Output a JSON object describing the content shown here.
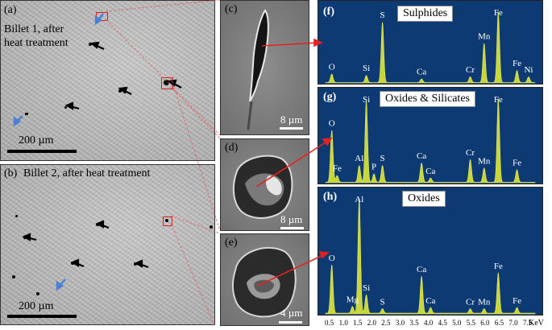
{
  "panels": {
    "a": {
      "label": "(a)",
      "caption_line1": "Billet 1, after",
      "caption_line2": "heat treatment",
      "scale": "200 µm"
    },
    "b": {
      "label": "(b)",
      "caption": "Billet 2, after heat treatment",
      "scale": "200 µm"
    },
    "c": {
      "label": "(c)",
      "scale": "8 µm"
    },
    "d": {
      "label": "(d)",
      "scale": "8 µm"
    },
    "e": {
      "label": "(e)",
      "scale": "4 µm"
    },
    "f": {
      "label": "(f)",
      "title": "Sulphides",
      "peaks": [
        "O",
        "Si",
        "S",
        "Ca",
        "Cr",
        "Mn",
        "Fe",
        "Fe",
        "Ni"
      ]
    },
    "g": {
      "label": "(g)",
      "title": "Oxides & Silicates",
      "peaks": [
        "O",
        "Fe",
        "Al",
        "Si",
        "P",
        "S",
        "Ca",
        "Ca",
        "Cr",
        "Mn",
        "Fe",
        "Fe"
      ]
    },
    "h": {
      "label": "(h)",
      "title": "Oxides",
      "peaks": [
        "Al",
        "O",
        "Mg",
        "Si",
        "S",
        "Ca",
        "Ca",
        "Cr",
        "Mn",
        "Fe",
        "Fe"
      ]
    }
  },
  "axis": {
    "ticks": [
      "0.5",
      "1.0",
      "1.5",
      "2.0",
      "2.5",
      "3.0",
      "3.5",
      "4.0",
      "4.5",
      "5.0",
      "5.5",
      "6.0",
      "6.5",
      "7.0",
      "7.5"
    ],
    "unit": "KeV"
  },
  "colors": {
    "spectrum_bg": "#0e3a73",
    "peak_fill": "#c8d63a",
    "arrow_red": "#e32222",
    "marker_red": "#d62020",
    "arrow_blue": "#4a7fd6"
  },
  "chart_data": [
    {
      "type": "area",
      "title": "Sulphides",
      "xlabel": "KeV",
      "x": [
        0.52,
        1.74,
        2.31,
        3.69,
        5.41,
        5.9,
        6.4,
        7.06,
        7.47
      ],
      "y": [
        0.12,
        0.1,
        0.85,
        0.05,
        0.08,
        0.55,
        1.0,
        0.17,
        0.08
      ],
      "labels": [
        "O",
        "Si",
        "S",
        "Ca",
        "Cr",
        "Mn",
        "Fe",
        "Fe",
        "Ni"
      ]
    },
    {
      "type": "area",
      "title": "Oxides & Silicates",
      "xlabel": "KeV",
      "x": [
        0.52,
        0.71,
        1.49,
        1.74,
        2.01,
        2.31,
        3.69,
        4.01,
        5.41,
        5.9,
        6.4,
        7.06
      ],
      "y": [
        0.62,
        0.08,
        0.2,
        0.97,
        0.1,
        0.2,
        0.23,
        0.05,
        0.27,
        0.17,
        1.0,
        0.15
      ],
      "labels": [
        "O",
        "Fe",
        "Al",
        "Si",
        "P",
        "S",
        "Ca",
        "Ca",
        "Cr",
        "Mn",
        "Fe",
        "Fe"
      ]
    },
    {
      "type": "area",
      "title": "Oxides",
      "xlabel": "KeV",
      "x": [
        1.49,
        0.52,
        1.25,
        1.74,
        2.31,
        3.69,
        4.01,
        5.41,
        5.9,
        6.4,
        7.06
      ],
      "y": [
        1.0,
        0.42,
        0.06,
        0.16,
        0.04,
        0.32,
        0.05,
        0.04,
        0.04,
        0.35,
        0.05
      ],
      "labels": [
        "Al",
        "O",
        "Mg",
        "Si",
        "S",
        "Ca",
        "Ca",
        "Cr",
        "Mn",
        "Fe",
        "Fe"
      ]
    }
  ]
}
